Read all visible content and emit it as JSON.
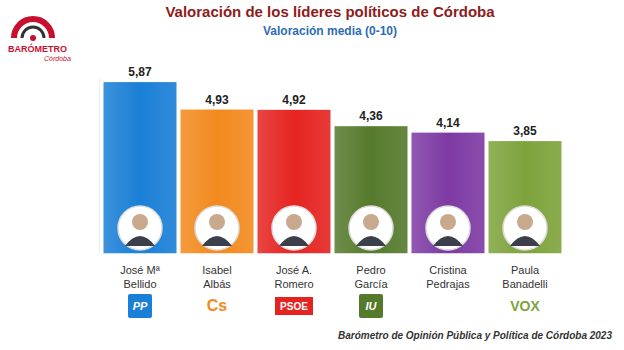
{
  "chart_data": {
    "type": "bar",
    "title": "Valoración de los líderes políticos de Córdoba",
    "subtitle": "Valoración media (0-10)",
    "categories": [
      "José Mª Bellido",
      "Isabel Albás",
      "José A. Romero",
      "Pedro García",
      "Cristina Pedrajas",
      "Paula Banadelli"
    ],
    "values": [
      5.87,
      4.93,
      4.92,
      4.36,
      4.14,
      3.85
    ],
    "value_labels": [
      "5,87",
      "4,93",
      "4,92",
      "4,36",
      "4,14",
      "3,85"
    ],
    "colors": [
      "#1a7fd6",
      "#f28a1e",
      "#e52421",
      "#557a2c",
      "#7d3aa3",
      "#7ea33c"
    ],
    "party_logos": [
      "PP",
      "Cs",
      "PSOE",
      "IU",
      null,
      "VOX"
    ],
    "ylim": [
      0,
      6
    ],
    "data_labels": true,
    "tick_labels": false,
    "grid": false,
    "logo": [
      "BARÓMETRO",
      "Córdoba"
    ],
    "source": "Barómetro de Opinión Pública y Política de Córdoba 2023"
  }
}
